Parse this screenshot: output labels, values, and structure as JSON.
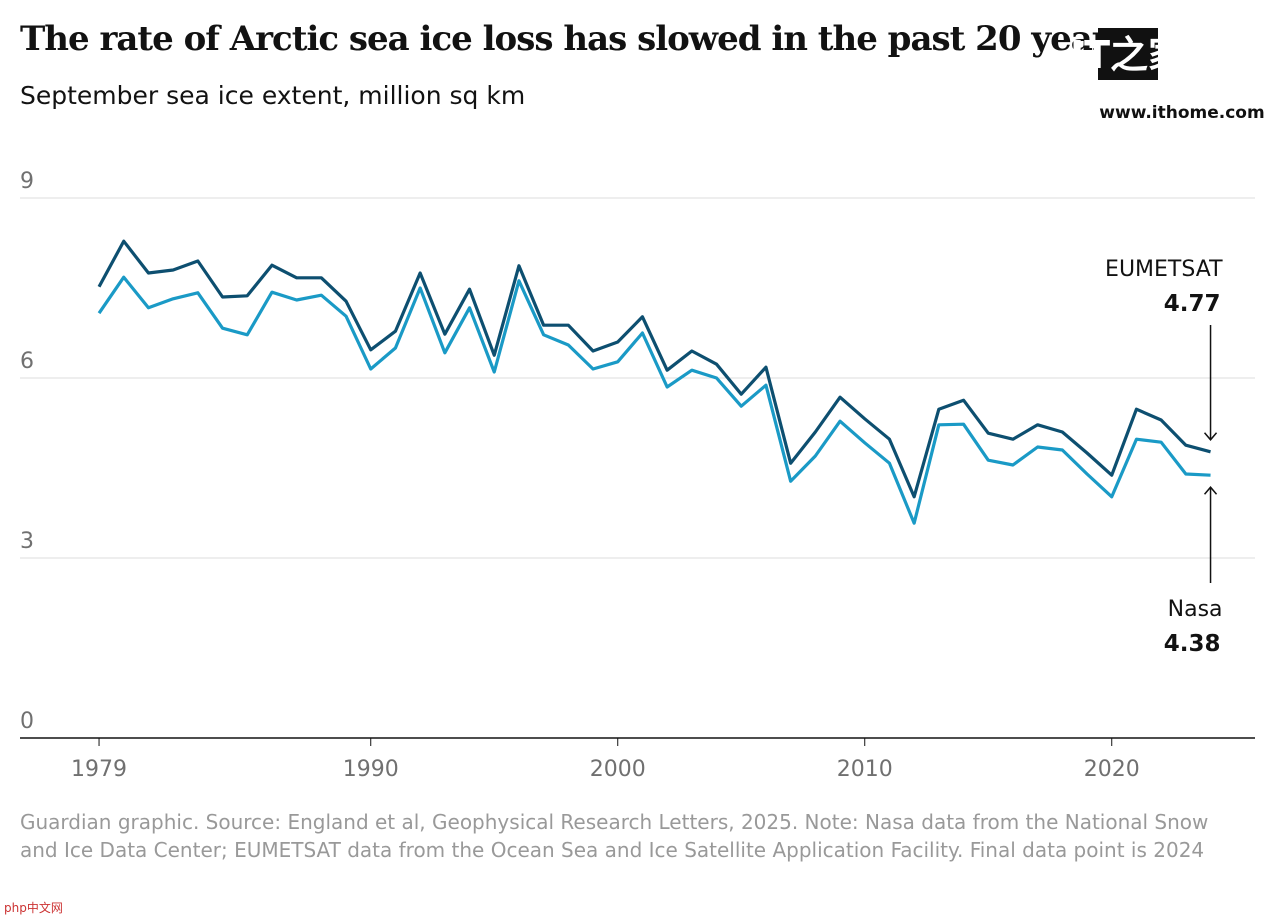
{
  "chart_data": {
    "type": "line",
    "title": "The rate of Arctic sea ice loss has slowed in the past 20 years",
    "subtitle": "September sea ice extent, million sq km",
    "x": [
      1979,
      1980,
      1981,
      1982,
      1983,
      1984,
      1985,
      1986,
      1987,
      1988,
      1989,
      1990,
      1991,
      1992,
      1993,
      1994,
      1995,
      1996,
      1997,
      1998,
      1999,
      2000,
      2001,
      2002,
      2003,
      2004,
      2005,
      2006,
      2007,
      2008,
      2009,
      2010,
      2011,
      2012,
      2013,
      2014,
      2015,
      2016,
      2017,
      2018,
      2019,
      2020,
      2021,
      2022,
      2023,
      2024
    ],
    "series": [
      {
        "name": "EUMETSAT",
        "color": "#0d4f70",
        "values": [
          7.52,
          8.28,
          7.75,
          7.8,
          7.95,
          7.35,
          7.37,
          7.88,
          7.67,
          7.67,
          7.28,
          6.47,
          6.78,
          7.75,
          6.73,
          7.48,
          6.38,
          7.87,
          6.88,
          6.88,
          6.45,
          6.6,
          7.02,
          6.13,
          6.45,
          6.23,
          5.73,
          6.18,
          4.58,
          5.1,
          5.68,
          5.32,
          4.98,
          4.02,
          5.48,
          5.63,
          5.08,
          4.98,
          5.22,
          5.1,
          4.75,
          4.38,
          5.48,
          5.3,
          4.88,
          4.77
        ]
      },
      {
        "name": "Nasa",
        "color": "#1a9ac6",
        "values": [
          7.08,
          7.68,
          7.17,
          7.32,
          7.42,
          6.83,
          6.72,
          7.43,
          7.3,
          7.38,
          7.03,
          6.15,
          6.5,
          7.5,
          6.42,
          7.17,
          6.1,
          7.62,
          6.72,
          6.55,
          6.15,
          6.27,
          6.75,
          5.85,
          6.13,
          6.0,
          5.53,
          5.88,
          4.28,
          4.7,
          5.28,
          4.92,
          4.58,
          3.58,
          5.22,
          5.23,
          4.63,
          4.55,
          4.85,
          4.8,
          4.4,
          4.02,
          4.98,
          4.93,
          4.4,
          4.38
        ]
      }
    ],
    "xlim": [
      1975.8,
      2025.8
    ],
    "xticks": [
      1979,
      1990,
      2000,
      2010,
      2020
    ],
    "ylim": [
      0,
      9
    ],
    "yticks": [
      0,
      3,
      6,
      9
    ],
    "grid": true,
    "annotations": [
      {
        "label": "EUMETSAT",
        "value": 4.77
      },
      {
        "label": "Nasa",
        "value": 4.38
      }
    ],
    "source": "Guardian graphic. Source: England et al, Geophysical Research Letters, 2025. Note: Nasa data from the National Snow and Ice Data Center; EUMETSAT data from the Ocean Sea and Ice Satellite Application Facility. Final data point is 2024"
  },
  "watermark": {
    "logo": "IT之家",
    "url": "www.ithome.com",
    "corner": "php中文网"
  }
}
